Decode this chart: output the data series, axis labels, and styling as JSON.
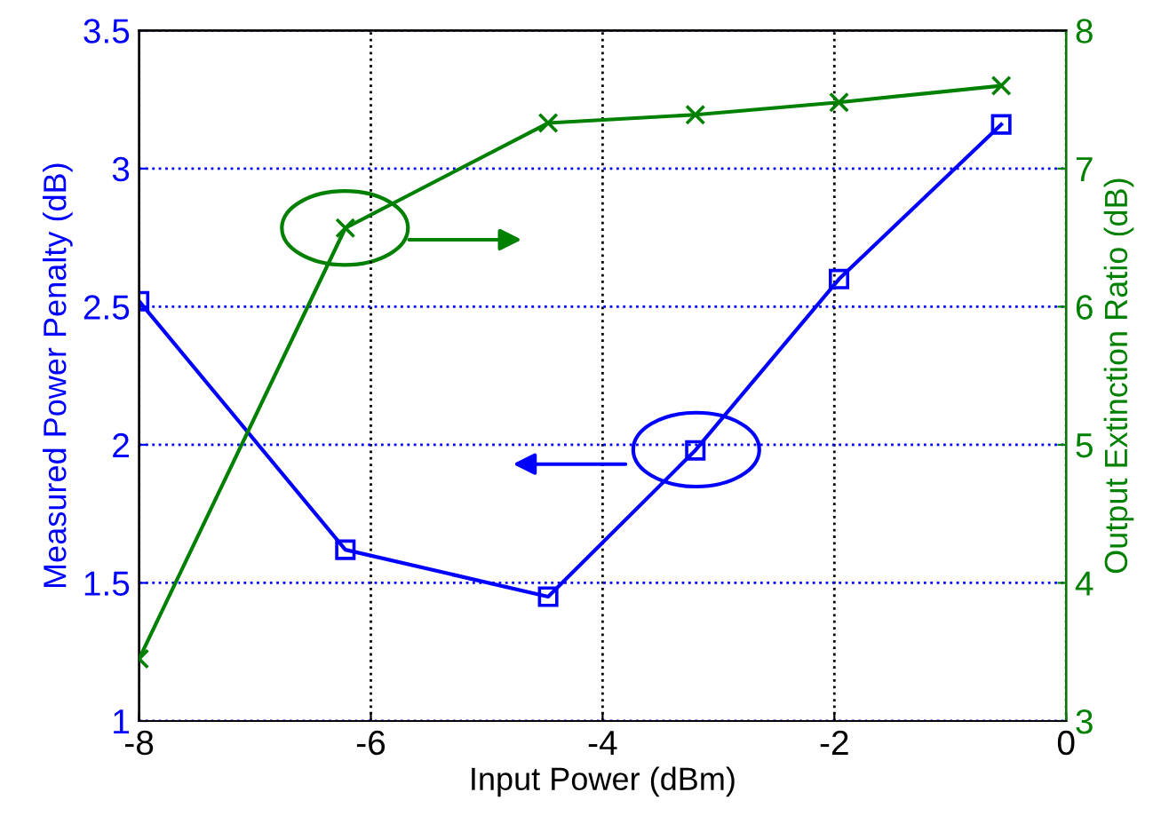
{
  "chart_data": {
    "type": "line",
    "xlabel": "Input Power (dBm)",
    "ylabel": "Measured Power Penalty (dB)",
    "y2label": "Output Extinction Ratio (dB)",
    "x": [
      -8,
      -6.22,
      -4.47,
      -3.2,
      -1.96,
      -0.56
    ],
    "series": [
      {
        "color": "#0000ff",
        "marker": "square",
        "values": [
          2.52,
          1.62,
          1.45,
          1.98,
          2.6,
          3.16
        ]
      },
      {
        "color": "#008000",
        "marker": "cross",
        "axis": "y2",
        "values": [
          3.45,
          6.57,
          7.33,
          7.39,
          7.48,
          7.6
        ]
      }
    ],
    "xlim": [
      -8,
      0
    ],
    "xticks": [
      -8,
      -6,
      -4,
      -2,
      0
    ],
    "ylim": [
      1,
      3.5
    ],
    "yticks": [
      1,
      1.5,
      2,
      2.5,
      3,
      3.5
    ],
    "y2lim": [
      3,
      8
    ],
    "y2ticks": [
      3,
      4,
      5,
      6,
      7,
      8
    ],
    "grid": true,
    "line_style": "solid"
  }
}
